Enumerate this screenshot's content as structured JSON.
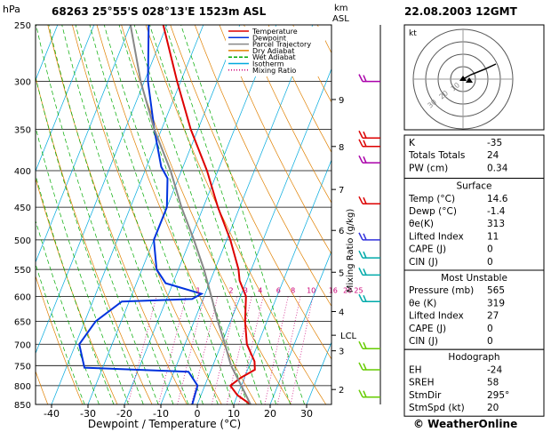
{
  "header": {
    "hpa_label": "hPa",
    "station": "68263  25°55'S  028°13'E  1523m  ASL",
    "km_label": "km",
    "asl_label": "ASL",
    "datetime": "22.08.2003  12GMT"
  },
  "legend": [
    {
      "label": "Temperature",
      "color": "#dd0000"
    },
    {
      "label": "Dewpoint",
      "color": "#0033dd"
    },
    {
      "label": "Parcel Trajectory",
      "color": "#888888"
    },
    {
      "label": "Dry Adiabat",
      "color": "#e08000"
    },
    {
      "label": "Wet Adiabat",
      "color": "#00aa00"
    },
    {
      "label": "Isotherm",
      "color": "#00aadd"
    },
    {
      "label": "Mixing Ratio",
      "color": "#cc0077"
    }
  ],
  "chart_data": {
    "type": "line",
    "xlabel": "Dewpoint / Temperature (°C)",
    "ylabel": "hPa",
    "mixing_ratio_axis_label": "Mixing Ratio (g/kg)",
    "x_ticks": [
      -40,
      -30,
      -20,
      -10,
      0,
      10,
      20,
      30
    ],
    "pressure_ticks": [
      250,
      300,
      350,
      400,
      450,
      500,
      550,
      600,
      650,
      700,
      750,
      800,
      850
    ],
    "km_ticks": [
      {
        "label": "9",
        "p": 318
      },
      {
        "label": "8",
        "p": 370
      },
      {
        "label": "7",
        "p": 425
      },
      {
        "label": "6",
        "p": 485
      },
      {
        "label": "5",
        "p": 555
      },
      {
        "label": "4",
        "p": 630
      },
      {
        "label": "3",
        "p": 715
      },
      {
        "label": "2",
        "p": 810
      }
    ],
    "lcl": {
      "label": "LCL",
      "p": 680
    },
    "mixing_ratio_labels": [
      {
        "label": "1",
        "p": 593,
        "t": -12
      },
      {
        "label": "2",
        "p": 593,
        "t": -3
      },
      {
        "label": "3",
        "p": 593,
        "t": 1
      },
      {
        "label": "4",
        "p": 593,
        "t": 5
      },
      {
        "label": "6",
        "p": 593,
        "t": 10
      },
      {
        "label": "8",
        "p": 593,
        "t": 14
      },
      {
        "label": "10",
        "p": 593,
        "t": 19
      },
      {
        "label": "16",
        "p": 593,
        "t": 25
      },
      {
        "label": "20",
        "p": 593,
        "t": 29
      },
      {
        "label": "25",
        "p": 593,
        "t": 32
      }
    ],
    "series": [
      {
        "name": "Temperature",
        "color": "#dd0000",
        "points": [
          [
            850,
            14.6
          ],
          [
            825,
            10
          ],
          [
            800,
            7
          ],
          [
            780,
            9
          ],
          [
            760,
            12
          ],
          [
            740,
            11
          ],
          [
            700,
            7
          ],
          [
            650,
            4
          ],
          [
            600,
            1.5
          ],
          [
            570,
            -2
          ],
          [
            550,
            -3.5
          ],
          [
            500,
            -9
          ],
          [
            450,
            -16
          ],
          [
            400,
            -23
          ],
          [
            350,
            -32
          ],
          [
            300,
            -41
          ],
          [
            250,
            -51
          ]
        ]
      },
      {
        "name": "Dewpoint",
        "color": "#0033dd",
        "points": [
          [
            850,
            -1.4
          ],
          [
            800,
            -2
          ],
          [
            765,
            -6
          ],
          [
            755,
            -35
          ],
          [
            700,
            -39
          ],
          [
            650,
            -37
          ],
          [
            610,
            -32
          ],
          [
            605,
            -13
          ],
          [
            595,
            -11
          ],
          [
            575,
            -22
          ],
          [
            550,
            -26
          ],
          [
            500,
            -30
          ],
          [
            450,
            -30
          ],
          [
            410,
            -33
          ],
          [
            395,
            -36
          ],
          [
            350,
            -42
          ],
          [
            300,
            -49
          ],
          [
            250,
            -55
          ]
        ]
      },
      {
        "name": "Parcel Trajectory",
        "color": "#888888",
        "points": [
          [
            850,
            14.6
          ],
          [
            800,
            10
          ],
          [
            750,
            5
          ],
          [
            700,
            1
          ],
          [
            650,
            -3.5
          ],
          [
            600,
            -8
          ],
          [
            550,
            -13
          ],
          [
            500,
            -19
          ],
          [
            450,
            -26
          ],
          [
            400,
            -33
          ],
          [
            350,
            -42
          ],
          [
            300,
            -51
          ],
          [
            250,
            -60
          ]
        ]
      }
    ]
  },
  "hodograph": {
    "unit_label": "kt",
    "ring_labels": [
      "10",
      "20",
      "30"
    ]
  },
  "indices": [
    {
      "label": "K",
      "value": "-35"
    },
    {
      "label": "Totals Totals",
      "value": "24"
    },
    {
      "label": "PW (cm)",
      "value": "0.34"
    }
  ],
  "surface": {
    "title": "Surface",
    "rows": [
      {
        "label": "Temp (°C)",
        "value": "14.6"
      },
      {
        "label": "Dewp (°C)",
        "value": "-1.4"
      },
      {
        "label": "θe(K)",
        "value": "313"
      },
      {
        "label": "Lifted Index",
        "value": "11"
      },
      {
        "label": "CAPE (J)",
        "value": "0"
      },
      {
        "label": "CIN (J)",
        "value": "0"
      }
    ]
  },
  "most_unstable": {
    "title": "Most Unstable",
    "rows": [
      {
        "label": "Pressure (mb)",
        "value": "565"
      },
      {
        "label": "θe (K)",
        "value": "319"
      },
      {
        "label": "Lifted Index",
        "value": "27"
      },
      {
        "label": "CAPE (J)",
        "value": "0"
      },
      {
        "label": "CIN (J)",
        "value": "0"
      }
    ]
  },
  "hodograph_table": {
    "title": "Hodograph",
    "rows": [
      {
        "label": "EH",
        "value": "-24"
      },
      {
        "label": "SREH",
        "value": "58"
      },
      {
        "label": "StmDir",
        "value": "295°"
      },
      {
        "label": "StmSpd (kt)",
        "value": "20"
      }
    ]
  },
  "copyright": "© WeatherOnline"
}
